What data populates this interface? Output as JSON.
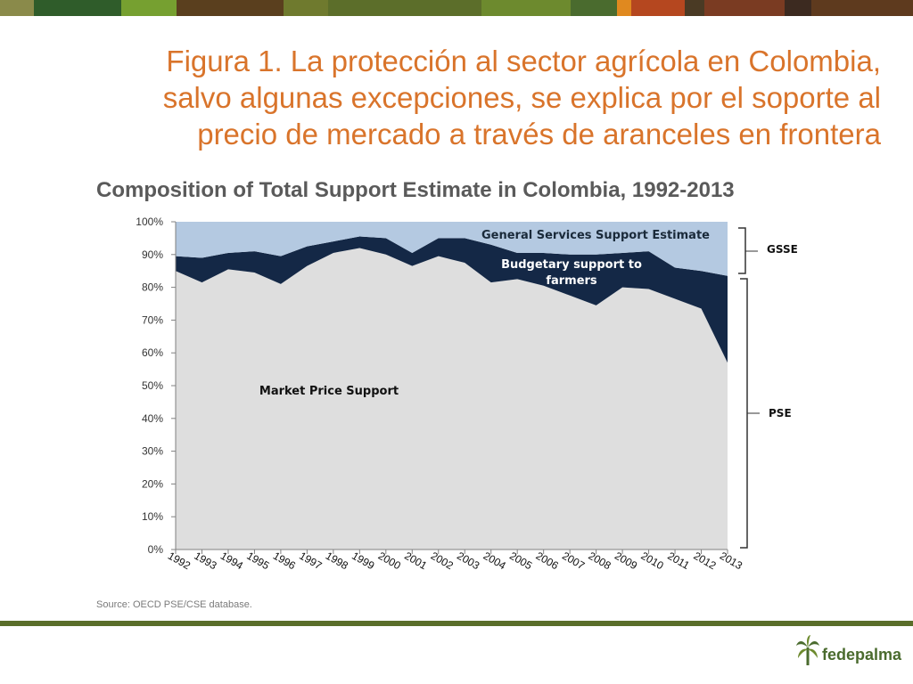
{
  "slide": {
    "title_lines": [
      "Figura 1. La protección al sector agrícola en Colombia,",
      "salvo algunas excepciones, se explica por el soporte al",
      "precio de mercado a través de aranceles en frontera"
    ],
    "source": "Source: OECD PSE/CSE database.",
    "logo_text": "fedepalma",
    "band_colors": [
      "#8a8a4a",
      "#2f5c2a",
      "#76a030",
      "#5a3f1e",
      "#6f7a2e",
      "#5c6e2a",
      "#6d8a2e",
      "#4a6b2e",
      "#e0891f",
      "#b5471f",
      "#4a3a24",
      "#7a3b22",
      "#3c2a20",
      "#5e3a1e"
    ]
  },
  "chart_data": {
    "type": "area",
    "title": "Composition of Total Support Estimate in Colombia, 1992-2013",
    "x": [
      "1992",
      "1993",
      "1994",
      "1995",
      "1996",
      "1997",
      "1998",
      "1999",
      "2000",
      "2001",
      "2002",
      "2003",
      "2004",
      "2005",
      "2006",
      "2007",
      "2008",
      "2009",
      "2010",
      "2011",
      "2012",
      "2013"
    ],
    "ylim": [
      0,
      100
    ],
    "yticks": [
      "0%",
      "10%",
      "20%",
      "30%",
      "40%",
      "50%",
      "60%",
      "70%",
      "80%",
      "90%",
      "100%"
    ],
    "stacked": true,
    "series": [
      {
        "name": "Market Price Support",
        "color": "#dedede",
        "values": [
          85,
          81.5,
          85.5,
          84.5,
          81,
          86.5,
          90.5,
          92,
          90,
          86.5,
          89.5,
          87.5,
          81.5,
          82.5,
          80.5,
          77.5,
          74.5,
          80,
          79.5,
          76.5,
          73.5,
          57
        ]
      },
      {
        "name": "Budgetary support to farmers",
        "color": "#142846",
        "values": [
          4.5,
          7.5,
          5,
          6.5,
          8.5,
          6,
          3.5,
          3.5,
          5,
          4,
          5.5,
          7.5,
          11.5,
          8,
          10,
          12.5,
          15.5,
          10.5,
          11.5,
          9.5,
          11.5,
          26.5
        ]
      },
      {
        "name": "General Services Support Estimate",
        "color": "#b4c9e1",
        "values": [
          10.5,
          11,
          9.5,
          9,
          10.5,
          7.5,
          6,
          4.5,
          5,
          9.5,
          5,
          5,
          7,
          9.5,
          9.5,
          10,
          10,
          9.5,
          9,
          14,
          15,
          16.5
        ]
      }
    ],
    "brackets": [
      {
        "label": "GSSE"
      },
      {
        "label": "PSE"
      }
    ],
    "grid": false
  }
}
